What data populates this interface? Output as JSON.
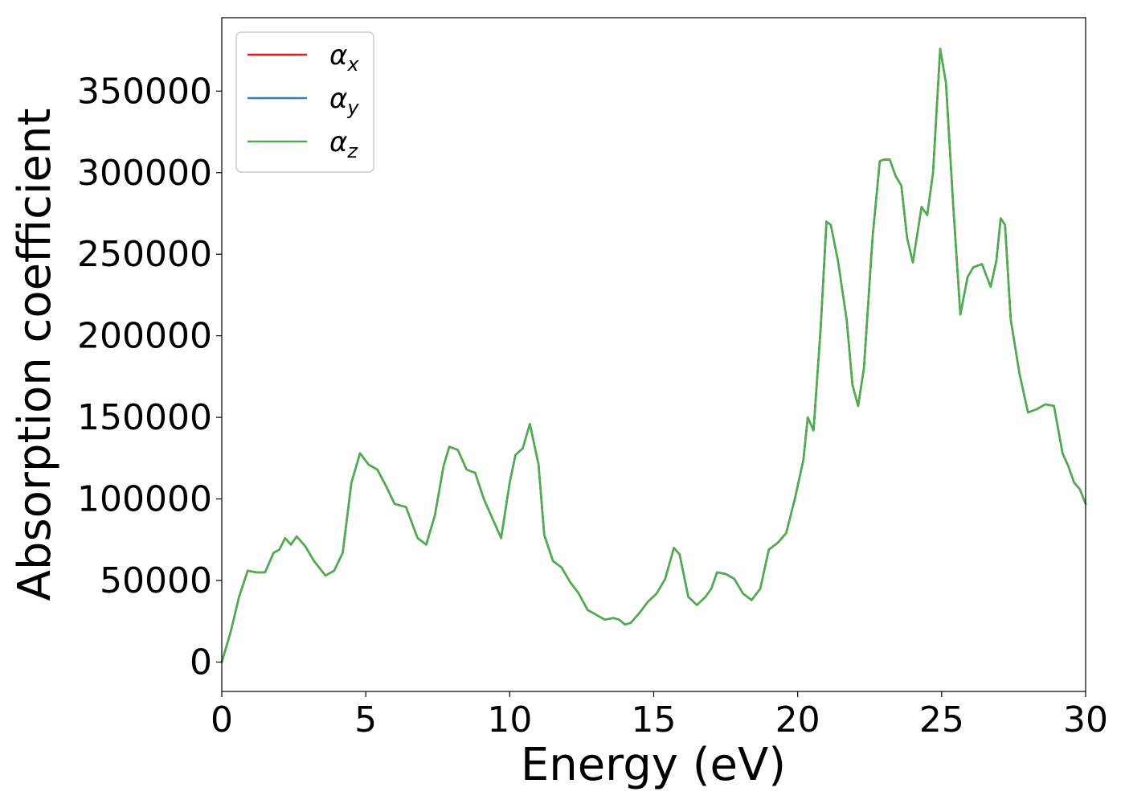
{
  "chart_data": {
    "type": "line",
    "xlabel": "Energy (eV)",
    "ylabel": "Absorption coefficient",
    "xlim": [
      0,
      30
    ],
    "ylim": [
      -18000,
      395000
    ],
    "xticks": [
      0,
      5,
      10,
      15,
      20,
      25,
      30
    ],
    "xtick_labels": [
      "0",
      "5",
      "10",
      "15",
      "20",
      "25",
      "30"
    ],
    "yticks": [
      0,
      50000,
      100000,
      150000,
      200000,
      250000,
      300000,
      350000
    ],
    "ytick_labels": [
      "0",
      "50000",
      "100000",
      "150000",
      "200000",
      "250000",
      "300000",
      "350000"
    ],
    "grid": false,
    "legend_position": "top-left",
    "x": [
      0,
      0.3,
      0.6,
      0.9,
      1.2,
      1.5,
      1.8,
      2.0,
      2.2,
      2.4,
      2.6,
      2.9,
      3.2,
      3.6,
      3.9,
      4.2,
      4.5,
      4.8,
      5.1,
      5.4,
      5.7,
      6.0,
      6.4,
      6.8,
      7.1,
      7.4,
      7.7,
      7.9,
      8.2,
      8.5,
      8.8,
      9.1,
      9.4,
      9.7,
      10.0,
      10.2,
      10.45,
      10.7,
      11.0,
      11.2,
      11.5,
      11.8,
      12.1,
      12.4,
      12.7,
      13.0,
      13.3,
      13.6,
      13.8,
      14.0,
      14.2,
      14.5,
      14.8,
      15.1,
      15.4,
      15.7,
      15.9,
      16.2,
      16.5,
      16.8,
      17.0,
      17.2,
      17.5,
      17.8,
      18.1,
      18.4,
      18.7,
      19.0,
      19.3,
      19.6,
      19.9,
      20.2,
      20.35,
      20.55,
      20.8,
      21.0,
      21.15,
      21.4,
      21.7,
      21.9,
      22.1,
      22.3,
      22.6,
      22.85,
      23.0,
      23.2,
      23.4,
      23.6,
      23.8,
      24.0,
      24.3,
      24.5,
      24.7,
      24.95,
      25.15,
      25.4,
      25.65,
      25.9,
      26.1,
      26.4,
      26.7,
      26.9,
      27.05,
      27.2,
      27.4,
      27.7,
      28.0,
      28.3,
      28.6,
      28.9,
      29.2,
      29.4,
      29.6,
      29.8,
      30.0
    ],
    "series": [
      {
        "name": "α_x",
        "color": "#e41a1c",
        "values": [
          0,
          18000,
          40000,
          56000,
          55000,
          55000,
          67000,
          69000,
          76000,
          72000,
          77000,
          71000,
          62000,
          53000,
          56000,
          67000,
          110000,
          128000,
          121000,
          118000,
          108000,
          97000,
          95000,
          76000,
          72000,
          90000,
          120000,
          132000,
          130000,
          118000,
          116000,
          100000,
          88000,
          76000,
          110000,
          127000,
          131000,
          146000,
          121000,
          78000,
          62000,
          58000,
          49000,
          42000,
          32000,
          29000,
          26000,
          27000,
          26000,
          23000,
          24000,
          30000,
          37000,
          42000,
          51000,
          70000,
          66000,
          40000,
          35000,
          40000,
          45000,
          55000,
          54000,
          51000,
          42000,
          38000,
          45000,
          69000,
          73000,
          79000,
          100000,
          124000,
          150000,
          142000,
          205000,
          270000,
          268000,
          246000,
          210000,
          170000,
          157000,
          180000,
          260000,
          307000,
          308000,
          308000,
          298000,
          292000,
          260000,
          245000,
          279000,
          274000,
          300000,
          376000,
          355000,
          280000,
          213000,
          236000,
          242000,
          244000,
          230000,
          246000,
          272000,
          268000,
          210000,
          177000,
          153000,
          155000,
          158000,
          157000,
          128000,
          120000,
          110000,
          106000,
          97000
        ]
      },
      {
        "name": "α_y",
        "color": "#377eb8",
        "values": [
          0,
          18000,
          40000,
          56000,
          55000,
          55000,
          67000,
          69000,
          76000,
          72000,
          77000,
          71000,
          62000,
          53000,
          56000,
          67000,
          110000,
          128000,
          121000,
          118000,
          108000,
          97000,
          95000,
          76000,
          72000,
          90000,
          120000,
          132000,
          130000,
          118000,
          116000,
          100000,
          88000,
          76000,
          110000,
          127000,
          131000,
          146000,
          121000,
          78000,
          62000,
          58000,
          49000,
          42000,
          32000,
          29000,
          26000,
          27000,
          26000,
          23000,
          24000,
          30000,
          37000,
          42000,
          51000,
          70000,
          66000,
          40000,
          35000,
          40000,
          45000,
          55000,
          54000,
          51000,
          42000,
          38000,
          45000,
          69000,
          73000,
          79000,
          100000,
          124000,
          150000,
          142000,
          205000,
          270000,
          268000,
          246000,
          210000,
          170000,
          157000,
          180000,
          260000,
          307000,
          308000,
          308000,
          298000,
          292000,
          260000,
          245000,
          279000,
          274000,
          300000,
          376000,
          355000,
          280000,
          213000,
          236000,
          242000,
          244000,
          230000,
          246000,
          272000,
          268000,
          210000,
          177000,
          153000,
          155000,
          158000,
          157000,
          128000,
          120000,
          110000,
          106000,
          97000
        ]
      },
      {
        "name": "α_z",
        "color": "#4daf4a",
        "values": [
          0,
          18000,
          40000,
          56000,
          55000,
          55000,
          67000,
          69000,
          76000,
          72000,
          77000,
          71000,
          62000,
          53000,
          56000,
          67000,
          110000,
          128000,
          121000,
          118000,
          108000,
          97000,
          95000,
          76000,
          72000,
          90000,
          120000,
          132000,
          130000,
          118000,
          116000,
          100000,
          88000,
          76000,
          110000,
          127000,
          131000,
          146000,
          121000,
          78000,
          62000,
          58000,
          49000,
          42000,
          32000,
          29000,
          26000,
          27000,
          26000,
          23000,
          24000,
          30000,
          37000,
          42000,
          51000,
          70000,
          66000,
          40000,
          35000,
          40000,
          45000,
          55000,
          54000,
          51000,
          42000,
          38000,
          45000,
          69000,
          73000,
          79000,
          100000,
          124000,
          150000,
          142000,
          205000,
          270000,
          268000,
          246000,
          210000,
          170000,
          157000,
          180000,
          260000,
          307000,
          308000,
          308000,
          298000,
          292000,
          260000,
          245000,
          279000,
          274000,
          300000,
          376000,
          355000,
          280000,
          213000,
          236000,
          242000,
          244000,
          230000,
          246000,
          272000,
          268000,
          210000,
          177000,
          153000,
          155000,
          158000,
          157000,
          128000,
          120000,
          110000,
          106000,
          97000
        ]
      }
    ],
    "legend": [
      {
        "symbol": "α",
        "subscript": "x"
      },
      {
        "symbol": "α",
        "subscript": "y"
      },
      {
        "symbol": "α",
        "subscript": "z"
      }
    ]
  }
}
